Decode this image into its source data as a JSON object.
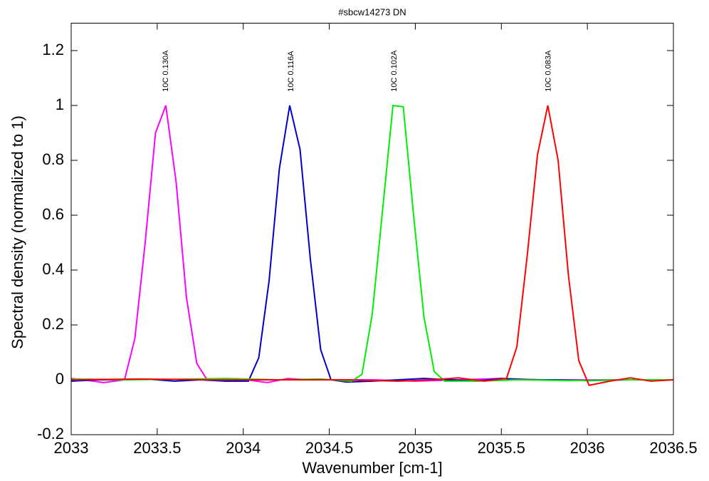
{
  "chart_data": {
    "type": "line",
    "title": "#sbcw14273 DN",
    "x_label": "Wavenumber [cm-1]",
    "y_label": "Spectral density (normalized to 1)",
    "xlim": [
      2033,
      2036.5
    ],
    "xticks": [
      2033,
      2033.5,
      2034,
      2034.5,
      2035,
      2035.5,
      2036,
      2036.5
    ],
    "ylim": [
      -0.2,
      1.3
    ],
    "yticks": [
      -0.2,
      0,
      0.2,
      0.4,
      0.6,
      0.8,
      1,
      1.2
    ],
    "grid": false,
    "series": [
      {
        "color": "#ff00ff",
        "x": [
          2033,
          2033.07,
          2033.13,
          2033.19,
          2033.25,
          2033.31,
          2033.37,
          2033.43,
          2033.49,
          2033.55,
          2033.61,
          2033.67,
          2033.73,
          2033.79,
          2033.9,
          2034.02,
          2034.14,
          2034.26,
          2034.38,
          2034.5,
          2034.75,
          2035,
          2035.25,
          2035.5,
          2035.75,
          2036,
          2036.25,
          2036.5
        ],
        "values": [
          0.005,
          0,
          -0.005,
          -0.01,
          -0.005,
          0,
          0.15,
          0.5,
          0.9,
          1,
          0.72,
          0.3,
          0.06,
          0,
          -0.005,
          0,
          -0.01,
          0.005,
          0,
          0,
          0,
          -0.005,
          0,
          0.005,
          0,
          0,
          0,
          0
        ]
      },
      {
        "color": "#0000cc",
        "x": [
          2033,
          2033.15,
          2033.3,
          2033.45,
          2033.6,
          2033.75,
          2033.9,
          2034.03,
          2034.09,
          2034.15,
          2034.21,
          2034.27,
          2034.33,
          2034.39,
          2034.45,
          2034.51,
          2034.6,
          2034.75,
          2034.9,
          2035.05,
          2035.2,
          2035.35,
          2035.5,
          2035.65,
          2035.8,
          2036,
          2036.25,
          2036.5
        ],
        "values": [
          -0.005,
          0,
          0,
          0.002,
          -0.005,
          0,
          -0.005,
          -0.005,
          0.08,
          0.36,
          0.77,
          1,
          0.84,
          0.44,
          0.11,
          0,
          -0.008,
          -0.005,
          0,
          0.005,
          0,
          -0.005,
          0.005,
          0,
          0,
          -0.003,
          0,
          0
        ]
      },
      {
        "color": "#00ee00",
        "x": [
          2033,
          2033.3,
          2033.6,
          2033.9,
          2034.2,
          2034.45,
          2034.63,
          2034.69,
          2034.75,
          2034.81,
          2034.87,
          2034.93,
          2034.99,
          2035.05,
          2035.11,
          2035.17,
          2035.35,
          2035.6,
          2035.9,
          2036.2,
          2036.5
        ],
        "values": [
          0.003,
          0,
          0.002,
          0.005,
          0,
          0.003,
          -0.005,
          0.02,
          0.24,
          0.62,
          1,
          0.995,
          0.6,
          0.23,
          0.03,
          -0.005,
          -0.005,
          0,
          -0.003,
          0,
          0
        ]
      },
      {
        "color": "#ff0000",
        "x": [
          2033,
          2033.4,
          2033.8,
          2034.2,
          2034.6,
          2034.9,
          2035.1,
          2035.25,
          2035.4,
          2035.53,
          2035.59,
          2035.65,
          2035.71,
          2035.77,
          2035.83,
          2035.89,
          2035.95,
          2036.01,
          2036.13,
          2036.25,
          2036.37,
          2036.5
        ],
        "values": [
          0,
          0.003,
          0,
          0,
          0,
          -0.005,
          0,
          0.007,
          -0.005,
          0.005,
          0.12,
          0.45,
          0.82,
          1,
          0.8,
          0.38,
          0.07,
          -0.02,
          -0.005,
          0.007,
          -0.005,
          0
        ]
      }
    ],
    "annotations": [
      {
        "text": "10C 0.130A",
        "x": 2033.546,
        "y": 1.05
      },
      {
        "text": "10C 0.116A",
        "x": 2034.274,
        "y": 1.05
      },
      {
        "text": "10C 0.102A",
        "x": 2034.874,
        "y": 1.05
      },
      {
        "text": "10C 0.083A",
        "x": 2035.77,
        "y": 1.05
      }
    ]
  }
}
